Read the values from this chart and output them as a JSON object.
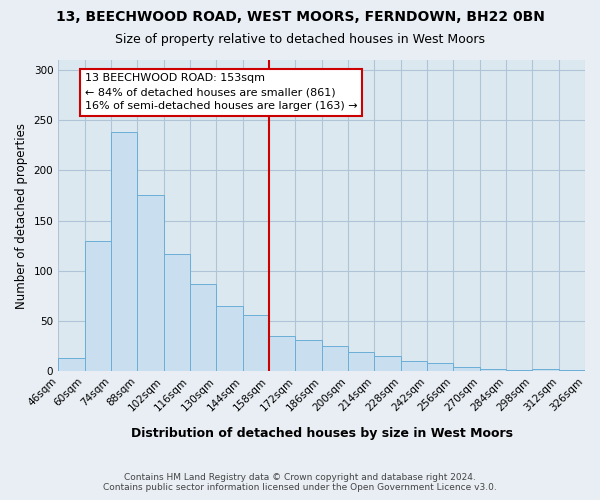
{
  "title": "13, BEECHWOOD ROAD, WEST MOORS, FERNDOWN, BH22 0BN",
  "subtitle": "Size of property relative to detached houses in West Moors",
  "bar_values": [
    13,
    130,
    238,
    176,
    117,
    87,
    65,
    56,
    35,
    31,
    25,
    19,
    15,
    10,
    8,
    4,
    2,
    1,
    2,
    1
  ],
  "categories": [
    "46sqm",
    "60sqm",
    "74sqm",
    "88sqm",
    "102sqm",
    "116sqm",
    "130sqm",
    "144sqm",
    "158sqm",
    "172sqm",
    "186sqm",
    "200sqm",
    "214sqm",
    "228sqm",
    "242sqm",
    "256sqm",
    "270sqm",
    "284sqm",
    "298sqm",
    "312sqm",
    "326sqm"
  ],
  "bar_color": "#c9dff0",
  "bar_edge_color": "#6aaed6",
  "ref_bar_index": 8,
  "reference_line_color": "#cc0000",
  "annotation_title": "13 BEECHWOOD ROAD: 153sqm",
  "annotation_line1": "← 84% of detached houses are smaller (861)",
  "annotation_line2": "16% of semi-detached houses are larger (163) →",
  "annotation_box_color": "#ffffff",
  "annotation_box_edge_color": "#cc0000",
  "ylabel": "Number of detached properties",
  "xlabel": "Distribution of detached houses by size in West Moors",
  "ylim": [
    0,
    310
  ],
  "yticks": [
    0,
    50,
    100,
    150,
    200,
    250,
    300
  ],
  "footnote1": "Contains HM Land Registry data © Crown copyright and database right 2024.",
  "footnote2": "Contains public sector information licensed under the Open Government Licence v3.0.",
  "background_color": "#e8eef4",
  "plot_background_color": "#dce8f0"
}
